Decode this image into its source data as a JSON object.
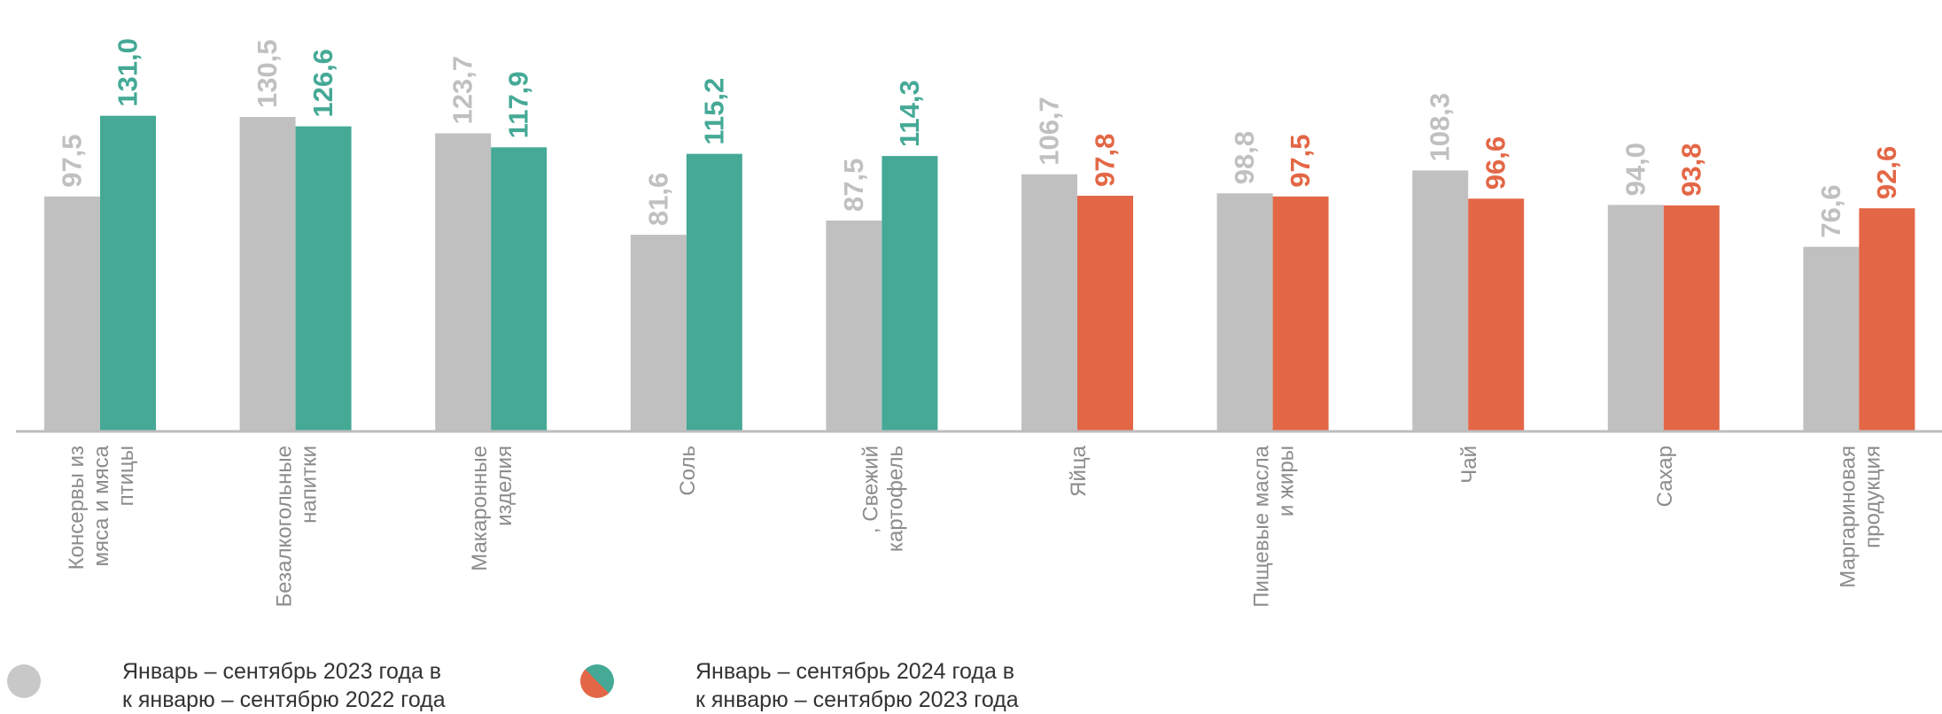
{
  "chart_data": {
    "type": "bar",
    "categories": [
      [
        "Консервы из",
        "мяса и мяса",
        "птицы"
      ],
      [
        "Безалкогольные",
        "напитки"
      ],
      [
        "Макаронные",
        "изделия"
      ],
      [
        "Соль"
      ],
      [
        ", Свежий",
        "картофель"
      ],
      [
        "Яйца"
      ],
      [
        "Пищевые масла",
        "и жиры"
      ],
      [
        "Чай"
      ],
      [
        "Сахар"
      ],
      [
        "Маргариновая",
        "продукция"
      ]
    ],
    "series": [
      {
        "values": [
          97.5,
          130.5,
          123.7,
          81.6,
          87.5,
          106.7,
          98.8,
          108.3,
          94.0,
          76.6
        ],
        "labels": [
          "97,5",
          "130,5",
          "123,7",
          "81,6",
          "87,5",
          "106,7",
          "98,8",
          "108,3",
          "94,0",
          "76,6"
        ]
      },
      {
        "values": [
          131.0,
          126.6,
          117.9,
          115.2,
          114.3,
          97.8,
          97.5,
          96.6,
          93.8,
          92.6
        ],
        "labels": [
          "131,0",
          "126,6",
          "117,9",
          "115,2",
          "114,3",
          "97,8",
          "97,5",
          "96,6",
          "93,8",
          "92,6"
        ]
      }
    ],
    "colors": {
      "previous": "#c0c0c0",
      "growth": "#45a996",
      "decline": "#e36746",
      "axis": "#bdbdbd",
      "category_text": "#8c8c8c"
    },
    "ylim": [
      0,
      140
    ],
    "grid": false,
    "legend_position": "bottom-left"
  },
  "legend": [
    {
      "line1": "Январь – сентябрь 2023 года в",
      "line2": "к январю – сентябрю 2022 года",
      "icon": "gray-circle-icon"
    },
    {
      "line1": "Январь – сентябрь 2024 года в",
      "line2": "к январю – сентябрю 2023 года",
      "icon": "green-orange-split-circle-icon"
    }
  ]
}
